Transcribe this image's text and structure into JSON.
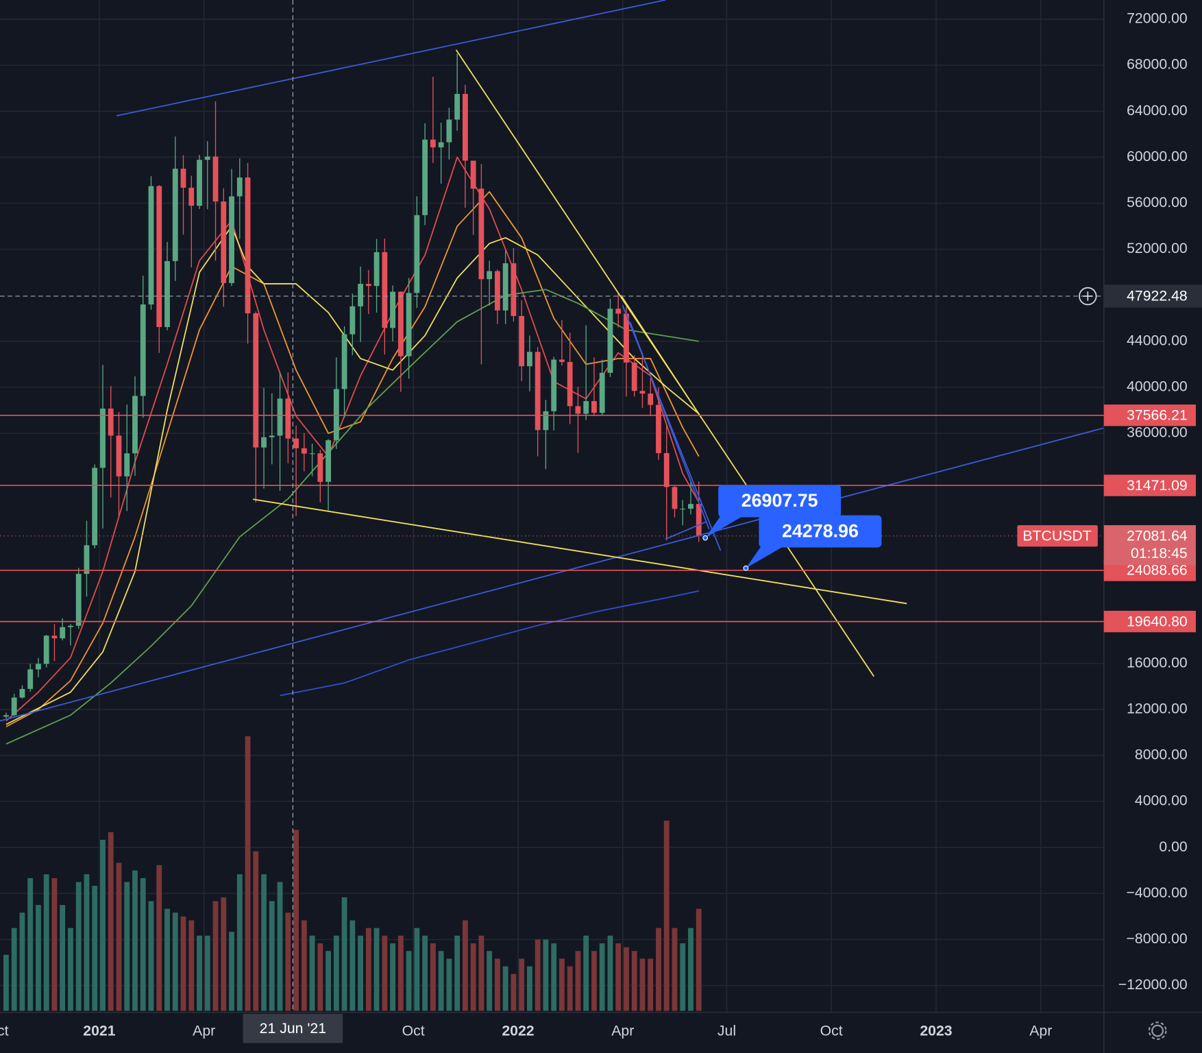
{
  "chart_data": {
    "type": "candlestick",
    "x": [
      -12,
      -11,
      -10,
      -9,
      -8,
      -7,
      -6,
      -5,
      -4,
      -3,
      -2,
      -1,
      0,
      1,
      2,
      3,
      4,
      5,
      6,
      7,
      8,
      9,
      10,
      11,
      12,
      13,
      14,
      15,
      16,
      17,
      18,
      19,
      20,
      21,
      22,
      23,
      24,
      25,
      26,
      27,
      28,
      29,
      30,
      31,
      32,
      33,
      34,
      35,
      36,
      37,
      38,
      39,
      40,
      41,
      42,
      43,
      44,
      45,
      46,
      47,
      48,
      49,
      50,
      51,
      52,
      53,
      54,
      55,
      56,
      57,
      58,
      59,
      60,
      61,
      62,
      63,
      64,
      65,
      66,
      67,
      68,
      69,
      70,
      71,
      72,
      73,
      74
    ],
    "open": [
      11370,
      11500,
      13030,
      13780,
      15480,
      15960,
      18410,
      18180,
      19150,
      19270,
      23780,
      26270,
      33000,
      38150,
      35800,
      32260,
      34260,
      39250,
      47200,
      57490,
      45240,
      50970,
      59000,
      57350,
      55780,
      59770,
      60060,
      56150,
      49060,
      56600,
      58240,
      46430,
      34770,
      35660,
      35800,
      39020,
      35550,
      34700,
      34240,
      34260,
      31780,
      35400,
      39850,
      44610,
      47040,
      48990,
      48810,
      51750,
      45160,
      48310,
      42700,
      48200,
      54970,
      61530,
      60860,
      61300,
      63270,
      65500,
      59700,
      57270,
      49400,
      50100,
      46680,
      50780,
      46200,
      41830,
      43080,
      36280,
      37920,
      42410,
      42200,
      38360,
      37700,
      38800,
      37780,
      41260,
      46830,
      46400,
      42150,
      39690,
      39450,
      38470,
      34280,
      31330,
      29430,
      29450,
      29860
    ],
    "high": [
      11720,
      13350,
      14100,
      15960,
      16480,
      18480,
      19420,
      19920,
      19420,
      24300,
      28400,
      33300,
      41950,
      40100,
      37850,
      38500,
      40960,
      49700,
      58350,
      57580,
      52640,
      61800,
      60170,
      58400,
      60200,
      61400,
      64850,
      57300,
      58980,
      59900,
      59500,
      46600,
      39950,
      39480,
      41330,
      41300,
      36680,
      36020,
      35100,
      34560,
      35500,
      42600,
      45300,
      48150,
      50500,
      50200,
      52900,
      52940,
      48850,
      48350,
      49500,
      56600,
      62950,
      67000,
      63000,
      64300,
      69000,
      66300,
      59600,
      59400,
      51000,
      50250,
      51900,
      52100,
      47570,
      44500,
      43500,
      38900,
      42650,
      45850,
      44750,
      40040,
      45400,
      42600,
      42400,
      47700,
      48190,
      47000,
      42800,
      42970,
      40800,
      40000,
      36800,
      31500,
      30200,
      31800,
      31800
    ],
    "low": [
      11220,
      11400,
      12950,
      13530,
      14800,
      15650,
      16200,
      18000,
      17560,
      19000,
      21800,
      26000,
      27730,
      30420,
      28800,
      29240,
      32300,
      37350,
      46750,
      43000,
      44960,
      49250,
      53270,
      50420,
      55500,
      55480,
      51000,
      47000,
      48800,
      52900,
      43800,
      30000,
      31200,
      33300,
      31000,
      33400,
      28800,
      32700,
      32270,
      30000,
      29300,
      34640,
      37350,
      42800,
      43950,
      46370,
      46500,
      42850,
      44000,
      39600,
      40750,
      46900,
      54100,
      59500,
      57700,
      59800,
      62300,
      55600,
      53250,
      42000,
      47100,
      45500,
      45500,
      45700,
      40550,
      39650,
      34000,
      32900,
      36250,
      41900,
      36800,
      34300,
      37150,
      37500,
      37600,
      40900,
      45200,
      39200,
      39200,
      38200,
      37500,
      33700,
      26700,
      28700,
      28000,
      28950,
      26560
    ],
    "close": [
      11500,
      13030,
      13780,
      15480,
      15960,
      18410,
      18180,
      19150,
      19270,
      23780,
      26270,
      33000,
      38150,
      35800,
      32260,
      34260,
      39250,
      47200,
      57490,
      45240,
      50970,
      59000,
      57350,
      55780,
      59770,
      60060,
      56150,
      49060,
      56600,
      58240,
      46430,
      34770,
      35660,
      35800,
      39020,
      35550,
      34700,
      34240,
      34260,
      31780,
      35400,
      39850,
      44610,
      47040,
      48990,
      48810,
      51750,
      45160,
      48310,
      42700,
      48200,
      54970,
      61530,
      60860,
      61300,
      63270,
      65500,
      59700,
      57270,
      49400,
      50100,
      46680,
      50780,
      46200,
      41830,
      43080,
      36280,
      37920,
      42410,
      42200,
      38360,
      37700,
      38800,
      37780,
      41260,
      46830,
      46400,
      42150,
      39690,
      39450,
      38470,
      34280,
      31330,
      29430,
      29450,
      29860,
      27081.64
    ],
    "volume": [
      73,
      108,
      128,
      173,
      138,
      178,
      173,
      138,
      108,
      168,
      178,
      163,
      223,
      233,
      193,
      168,
      183,
      173,
      143,
      190,
      133,
      128,
      123,
      118,
      98,
      98,
      143,
      148,
      103,
      178,
      358,
      208,
      178,
      143,
      168,
      128,
      236,
      118,
      98,
      88,
      78,
      98,
      148,
      118,
      98,
      108,
      108,
      98,
      88,
      98,
      78,
      108,
      98,
      88,
      78,
      68,
      98,
      118,
      88,
      98,
      78,
      68,
      58,
      48,
      68,
      58,
      93,
      93,
      88,
      68,
      58,
      78,
      98,
      78,
      88,
      98,
      88,
      83,
      78,
      68,
      68,
      108,
      248,
      108,
      88,
      108,
      133
    ],
    "volume_lim": [
      0,
      400
    ],
    "up_color": "#5aa883",
    "down_color": "#e4525a",
    "volume_up_color": "#2e6b63",
    "volume_down_color": "#7a3638",
    "xlim": [
      -12.76,
      124.29
    ],
    "ylim": [
      -14333,
      73667
    ],
    "xticks": [
      {
        "value": -12.4,
        "label": "ct"
      },
      {
        "value": -0.43,
        "label": "2021"
      },
      {
        "value": 12.57,
        "label": "Apr"
      },
      {
        "value": 38.56,
        "label": "Oct"
      },
      {
        "value": 51.56,
        "label": "2022"
      },
      {
        "value": 64.56,
        "label": "Apr"
      },
      {
        "value": 77.47,
        "label": "Jul"
      },
      {
        "value": 90.46,
        "label": "Oct"
      },
      {
        "value": 103.46,
        "label": "2023"
      },
      {
        "value": 116.46,
        "label": "Apr"
      }
    ],
    "yticks": [
      {
        "value": 72000,
        "label": "72000.00"
      },
      {
        "value": 68000,
        "label": "68000.00"
      },
      {
        "value": 64000,
        "label": "64000.00"
      },
      {
        "value": 60000,
        "label": "60000.00"
      },
      {
        "value": 56000,
        "label": "56000.00"
      },
      {
        "value": 52000,
        "label": "52000.00"
      },
      {
        "value": 44000,
        "label": "44000.00"
      },
      {
        "value": 40000,
        "label": "40000.00"
      },
      {
        "value": 36000,
        "label": "36000.00"
      },
      {
        "value": 16000,
        "label": "16000.00"
      },
      {
        "value": 12000,
        "label": "12000.00"
      },
      {
        "value": 8000,
        "label": "8000.00"
      },
      {
        "value": 4000,
        "label": "4000.00"
      },
      {
        "value": 0,
        "label": "0.00"
      },
      {
        "value": -4000,
        "label": "−4000.00"
      },
      {
        "value": -8000,
        "label": "−8000.00"
      },
      {
        "value": -12000,
        "label": "−12000.00"
      }
    ],
    "grid": true,
    "moving_averages": [
      {
        "color": "#e24b4b",
        "x": [
          -12,
          -8,
          -4,
          0,
          4,
          8,
          12,
          16,
          20,
          24,
          28,
          32,
          36,
          40,
          44,
          48,
          52,
          56,
          60,
          64,
          68,
          72,
          74
        ],
        "values": [
          11000,
          13500,
          16500,
          24000,
          33500,
          42000,
          51000,
          54500,
          45000,
          37500,
          34000,
          41000,
          46500,
          51500,
          60000,
          55500,
          48500,
          40500,
          39000,
          43000,
          41000,
          32500,
          30000
        ]
      },
      {
        "color": "#f0972f",
        "x": [
          -12,
          -8,
          -4,
          0,
          4,
          8,
          12,
          16,
          20,
          24,
          28,
          32,
          36,
          40,
          44,
          48,
          52,
          56,
          60,
          64,
          68,
          72,
          74
        ],
        "values": [
          10500,
          12000,
          14500,
          19500,
          27000,
          36000,
          45000,
          50500,
          49000,
          41500,
          36000,
          37000,
          42500,
          47000,
          54000,
          57000,
          53000,
          46000,
          42000,
          42500,
          42500,
          36500,
          34000
        ]
      },
      {
        "color": "#f2e05a",
        "x": [
          -12,
          -4,
          0,
          4,
          8,
          12,
          16,
          18,
          20,
          24,
          28,
          32,
          36,
          40,
          44,
          48,
          50,
          54,
          58,
          62,
          66,
          70,
          74
        ],
        "values": [
          10700,
          13500,
          17000,
          24000,
          38000,
          50000,
          54000,
          50500,
          49000,
          49000,
          46500,
          42500,
          41500,
          44500,
          49500,
          52500,
          53000,
          51500,
          48500,
          45500,
          42500,
          40000,
          37700
        ]
      },
      {
        "color": "#5fa04e",
        "x": [
          -12,
          -4,
          1,
          6,
          11,
          17,
          23,
          28,
          33,
          38,
          44,
          50,
          55,
          59,
          65,
          74
        ],
        "values": [
          9000,
          11500,
          14300,
          17500,
          21000,
          27000,
          30300,
          34300,
          38300,
          41700,
          45700,
          48000,
          48500,
          47300,
          45000,
          44000
        ]
      },
      {
        "color": "#3050d0",
        "x": [
          22,
          30,
          38,
          46,
          54,
          62,
          70,
          74
        ],
        "values": [
          13200,
          14300,
          16300,
          17800,
          19300,
          20600,
          21700,
          22300
        ]
      }
    ],
    "levels": [
      37566.21,
      31471.09,
      24088.66,
      {
        "value": 19640.8,
        "label": "19640.80"
      }
    ],
    "level_color": "#e4525a",
    "crosshair": {
      "x": 23.6,
      "x_label": "21 Jun '21",
      "y": 47922.48
    },
    "symbol": "BTCUSDT",
    "last_price": 27081.64,
    "countdown": "01:18:45",
    "callouts": [
      26907.75,
      24278.96
    ],
    "callout_color": "#2962ff"
  }
}
